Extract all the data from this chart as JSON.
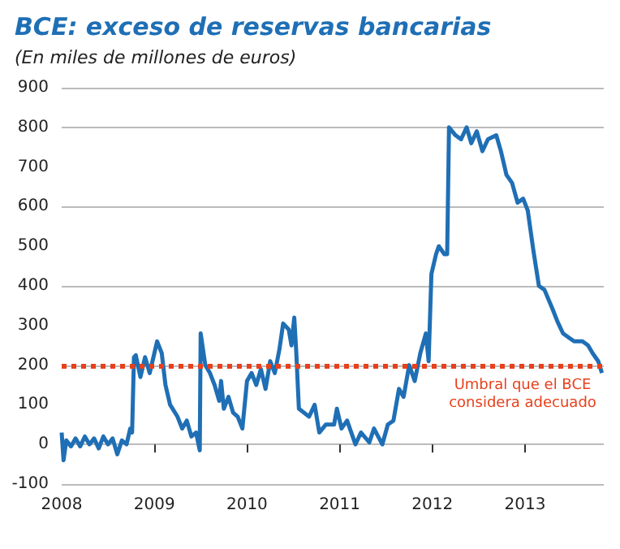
{
  "chart_data": {
    "type": "line",
    "title": "BCE: exceso de reservas bancarias",
    "subtitle": "(En miles de millones de euros)",
    "x": [
      2008.0,
      2008.02,
      2008.05,
      2008.1,
      2008.15,
      2008.2,
      2008.25,
      2008.3,
      2008.35,
      2008.4,
      2008.45,
      2008.5,
      2008.55,
      2008.6,
      2008.65,
      2008.7,
      2008.74,
      2008.76,
      2008.78,
      2008.8,
      2008.85,
      2008.9,
      2008.95,
      2009.03,
      2009.08,
      2009.12,
      2009.17,
      2009.25,
      2009.3,
      2009.35,
      2009.4,
      2009.45,
      2009.49,
      2009.5,
      2009.55,
      2009.6,
      2009.65,
      2009.7,
      2009.72,
      2009.75,
      2009.8,
      2009.85,
      2009.9,
      2009.95,
      2010.0,
      2010.05,
      2010.1,
      2010.15,
      2010.2,
      2010.25,
      2010.3,
      2010.35,
      2010.39,
      2010.45,
      2010.48,
      2010.51,
      2010.53,
      2010.56,
      2010.67,
      2010.73,
      2010.78,
      2010.85,
      2010.94,
      2010.97,
      2011.02,
      2011.08,
      2011.17,
      2011.23,
      2011.32,
      2011.37,
      2011.46,
      2011.52,
      2011.58,
      2011.64,
      2011.69,
      2011.75,
      2011.81,
      2011.87,
      2011.93,
      2011.96,
      2011.99,
      2012.04,
      2012.07,
      2012.13,
      2012.16,
      2012.18,
      2012.25,
      2012.31,
      2012.37,
      2012.42,
      2012.48,
      2012.54,
      2012.6,
      2012.69,
      2012.74,
      2012.8,
      2012.86,
      2012.92,
      2012.98,
      2013.03,
      2013.09,
      2013.15,
      2013.21,
      2013.3,
      2013.35,
      2013.41,
      2013.47,
      2013.53,
      2013.62,
      2013.68,
      2013.73,
      2013.79,
      2013.83
    ],
    "values": [
      30,
      -40,
      10,
      -5,
      15,
      -5,
      20,
      0,
      15,
      -10,
      20,
      0,
      15,
      -25,
      10,
      0,
      40,
      30,
      220,
      225,
      170,
      220,
      180,
      260,
      230,
      150,
      100,
      70,
      40,
      60,
      20,
      30,
      -15,
      280,
      200,
      180,
      150,
      110,
      160,
      90,
      120,
      80,
      70,
      40,
      160,
      180,
      150,
      190,
      140,
      210,
      180,
      240,
      305,
      290,
      250,
      320,
      240,
      90,
      70,
      100,
      30,
      50,
      50,
      90,
      40,
      60,
      0,
      30,
      5,
      40,
      0,
      50,
      60,
      140,
      120,
      200,
      160,
      230,
      280,
      210,
      430,
      480,
      500,
      480,
      480,
      800,
      780,
      770,
      800,
      760,
      790,
      740,
      770,
      780,
      740,
      680,
      660,
      610,
      620,
      590,
      490,
      400,
      390,
      340,
      310,
      280,
      270,
      260,
      260,
      250,
      230,
      210,
      180
    ],
    "color": "#1f6fb5",
    "xlim": [
      2008,
      2013.85
    ],
    "xticks": [
      2008,
      2009,
      2010,
      2011,
      2012,
      2013
    ],
    "ylim": [
      -100,
      900
    ],
    "yticks": [
      -100,
      0,
      100,
      200,
      300,
      400,
      500,
      600,
      700,
      800,
      900
    ],
    "grid": "y",
    "marker": "none",
    "line_style": "solid",
    "ref_lines": [
      {
        "axis": "y",
        "value": 200,
        "label": "Umbral que el BCE\nconsidera adecuado",
        "color": "#e8401c",
        "line_style": "dotted"
      }
    ]
  }
}
